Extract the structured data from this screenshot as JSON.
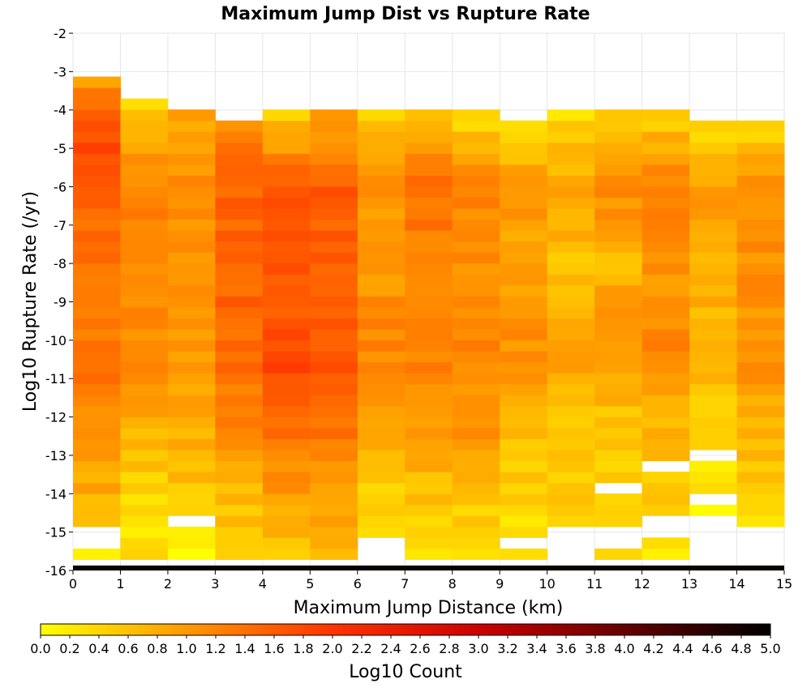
{
  "chart_data": {
    "type": "heatmap",
    "title": "Maximum Jump Dist vs Rupture Rate",
    "xlabel": "Maximum Jump Distance (km)",
    "ylabel": "Log10 Rupture Rate (/yr)",
    "colorbar_label": "Log10 Count",
    "xlim": [
      0,
      15
    ],
    "ylim": [
      -16,
      -2
    ],
    "x_ticks": [
      "0",
      "1",
      "2",
      "3",
      "4",
      "5",
      "6",
      "7",
      "8",
      "9",
      "10",
      "11",
      "12",
      "13",
      "14",
      "15"
    ],
    "y_ticks": [
      "-16",
      "-15",
      "-14",
      "-13",
      "-12",
      "-11",
      "-10",
      "-9",
      "-8",
      "-7",
      "-6",
      "-5",
      "-4",
      "-3",
      "-2"
    ],
    "colorbar_ticks": [
      "0.0",
      "0.2",
      "0.4",
      "0.6",
      "0.8",
      "1.0",
      "1.2",
      "1.4",
      "1.6",
      "1.8",
      "2.0",
      "2.2",
      "2.4",
      "2.6",
      "2.8",
      "3.0",
      "3.2",
      "3.4",
      "3.6",
      "3.8",
      "4.0",
      "4.2",
      "4.4",
      "4.6",
      "4.8",
      "5.0"
    ],
    "colorbar_range": [
      0,
      5
    ],
    "colorscale": [
      "#ffff00",
      "#ff9900",
      "#ff3300",
      "#cc0000",
      "#660000",
      "#000000"
    ],
    "x_bin_width_km": 1,
    "y_bin_width_log10": 0.286,
    "columns": [
      {
        "x": 0.5,
        "y_max": -3.0,
        "profile": [
          [
            -15.857,
            0.3
          ],
          [
            -15.3,
            0.3
          ],
          [
            -15.0,
            0.7
          ],
          [
            -13,
            0.9
          ],
          [
            -11,
            1.3
          ],
          [
            -9,
            1.3
          ],
          [
            -7,
            1.4
          ],
          [
            -6,
            1.6
          ],
          [
            -5,
            1.8
          ],
          [
            -3.6,
            1.4
          ],
          [
            -3.0,
            0.5
          ]
        ]
      },
      {
        "x": 1.5,
        "y_max": -3.57,
        "profile": [
          [
            -15.857,
            0.3
          ],
          [
            -14.5,
            0.3
          ],
          [
            -13,
            0.6
          ],
          [
            -11,
            1.2
          ],
          [
            -9,
            1.1
          ],
          [
            -7,
            1.2
          ],
          [
            -5,
            1.0
          ],
          [
            -3.57,
            0.3
          ]
        ]
      },
      {
        "x": 2.5,
        "y_max": -3.86,
        "profile": [
          [
            -15.857,
            0.1
          ],
          [
            -15,
            0.2
          ],
          [
            -14,
            0.6
          ],
          [
            -12,
            0.8
          ],
          [
            -10,
            1.0
          ],
          [
            -8,
            1.0
          ],
          [
            -6,
            1.2
          ],
          [
            -4,
            0.8
          ]
        ]
      },
      {
        "x": 3.5,
        "y_max": -4.14,
        "profile": [
          [
            -15.857,
            0.4
          ],
          [
            -14,
            0.7
          ],
          [
            -12,
            1.2
          ],
          [
            -10,
            1.5
          ],
          [
            -8,
            1.5
          ],
          [
            -6,
            1.5
          ],
          [
            -4.14,
            1.1
          ]
        ]
      },
      {
        "x": 4.5,
        "y_max": -3.86,
        "profile": [
          [
            -15.857,
            0.4
          ],
          [
            -14,
            1.0
          ],
          [
            -12,
            1.5
          ],
          [
            -10.5,
            1.8
          ],
          [
            -8,
            1.6
          ],
          [
            -6,
            1.7
          ],
          [
            -4,
            0.4
          ]
        ]
      },
      {
        "x": 5.5,
        "y_max": -3.86,
        "profile": [
          [
            -15.857,
            0.6
          ],
          [
            -14,
            1.0
          ],
          [
            -12,
            1.4
          ],
          [
            -10,
            1.7
          ],
          [
            -8,
            1.6
          ],
          [
            -6,
            1.6
          ],
          [
            -4,
            0.8
          ]
        ]
      },
      {
        "x": 6.5,
        "y_max": -3.86,
        "profile": [
          [
            -15.143,
            0.3
          ],
          [
            -14,
            0.4
          ],
          [
            -12,
            1.0
          ],
          [
            -10,
            1.2
          ],
          [
            -8,
            1.0
          ],
          [
            -6,
            1.1
          ],
          [
            -4,
            0.4
          ]
        ]
      },
      {
        "x": 7.5,
        "y_max": -3.86,
        "profile": [
          [
            -15.857,
            0.3
          ],
          [
            -14,
            0.6
          ],
          [
            -12,
            1.1
          ],
          [
            -10,
            1.3
          ],
          [
            -8,
            1.2
          ],
          [
            -6,
            1.4
          ],
          [
            -4,
            0.5
          ]
        ]
      },
      {
        "x": 8.5,
        "y_max": -3.86,
        "profile": [
          [
            -15.857,
            0.3
          ],
          [
            -14,
            0.6
          ],
          [
            -12,
            1.1
          ],
          [
            -10,
            1.2
          ],
          [
            -8,
            1.1
          ],
          [
            -6,
            1.2
          ],
          [
            -4,
            0.3
          ]
        ]
      },
      {
        "x": 9.5,
        "y_max": -4.14,
        "profile": [
          [
            -15.857,
            0.3
          ],
          [
            -14,
            0.4
          ],
          [
            -12,
            0.8
          ],
          [
            -10,
            1.1
          ],
          [
            -8,
            0.9
          ],
          [
            -6,
            1.0
          ],
          [
            -4.14,
            0.3
          ]
        ]
      },
      {
        "x": 10.5,
        "y_max": -3.86,
        "profile": [
          [
            -14.857,
            0.5
          ],
          [
            -14,
            0.5
          ],
          [
            -12,
            0.6
          ],
          [
            -10,
            1.0
          ],
          [
            -8,
            0.6
          ],
          [
            -6,
            0.9
          ],
          [
            -4,
            0.3
          ]
        ]
      },
      {
        "x": 11.5,
        "y_max": -3.86,
        "profile": [
          [
            -15.571,
            0.3
          ],
          [
            -14,
            0.4
          ],
          [
            -12,
            0.6
          ],
          [
            -10,
            1.1
          ],
          [
            -8,
            0.7
          ],
          [
            -6,
            1.2
          ],
          [
            -4,
            0.4
          ]
        ]
      },
      {
        "x": 12.5,
        "y_max": -3.86,
        "profile": [
          [
            -15.857,
            0.2
          ],
          [
            -14,
            0.5
          ],
          [
            -12,
            0.8
          ],
          [
            -10,
            1.2
          ],
          [
            -8,
            1.0
          ],
          [
            -6,
            1.3
          ],
          [
            -4,
            0.4
          ]
        ]
      },
      {
        "x": 13.5,
        "y_max": -4.14,
        "profile": [
          [
            -14.143,
            0.2
          ],
          [
            -13,
            0.3
          ],
          [
            -12,
            0.5
          ],
          [
            -10,
            0.8
          ],
          [
            -8,
            0.7
          ],
          [
            -6,
            1.0
          ],
          [
            -4.14,
            0.2
          ]
        ]
      },
      {
        "x": 14.5,
        "y_max": -4.14,
        "profile": [
          [
            -14.714,
            0.4
          ],
          [
            -13,
            0.6
          ],
          [
            -11,
            1.0
          ],
          [
            -9,
            1.1
          ],
          [
            -7,
            1.1
          ],
          [
            -6,
            1.2
          ],
          [
            -4.14,
            0.2
          ]
        ]
      }
    ],
    "gaps": [
      {
        "x": 0.5,
        "y": [
          -15.571,
          -14.714
        ]
      },
      {
        "x": 2.5,
        "y": [
          -14.714,
          -14.429
        ]
      },
      {
        "x": 6.5,
        "y": [
          -15.857,
          -15.143
        ]
      },
      {
        "x": 8.5,
        "y": [
          -15.571,
          -15.286
        ]
      },
      {
        "x": 9.5,
        "y": [
          -15.286,
          -15.0
        ]
      },
      {
        "x": 10.5,
        "y": [
          -15.857,
          -14.857
        ]
      },
      {
        "x": 11.5,
        "y": [
          -15.286,
          -14.714
        ]
      },
      {
        "x": 11.5,
        "y": [
          -14.0,
          -13.714
        ]
      },
      {
        "x": 12.5,
        "y": [
          -15.571,
          -15.286
        ]
      },
      {
        "x": 12.5,
        "y": [
          -15.0,
          -14.429
        ]
      },
      {
        "x": 12.5,
        "y": [
          -13.429,
          -13.143
        ]
      },
      {
        "x": 13.5,
        "y": [
          -15.857,
          -14.429
        ]
      },
      {
        "x": 13.5,
        "y": [
          -14.143,
          -13.857
        ]
      },
      {
        "x": 13.5,
        "y": [
          -13.143,
          -12.857
        ]
      },
      {
        "x": 14.5,
        "y": [
          -15.857,
          -14.714
        ]
      }
    ],
    "bottom_row": {
      "y": -15.857,
      "value": 4.9,
      "x_range": [
        0,
        15
      ]
    }
  }
}
